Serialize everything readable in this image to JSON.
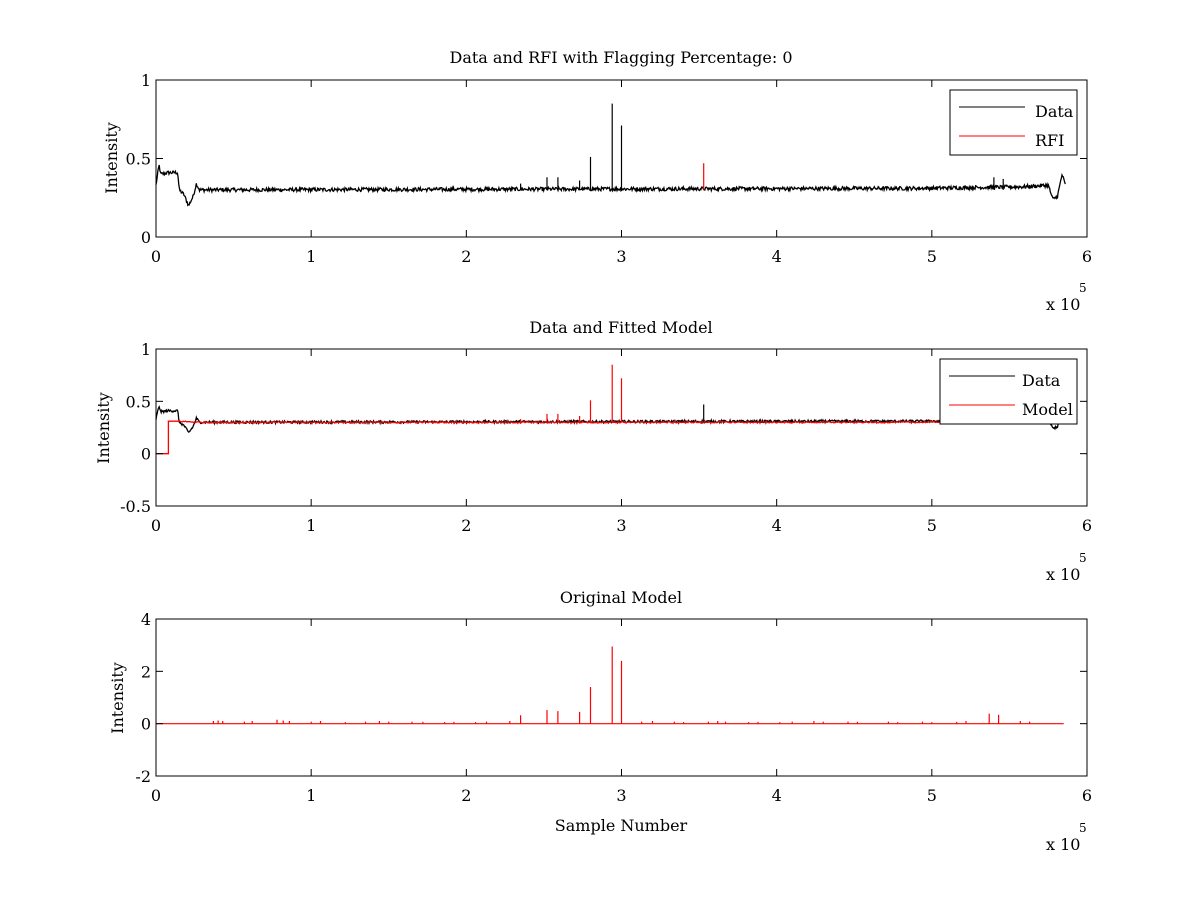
{
  "chart_data": [
    {
      "type": "line",
      "title": "Data and RFI with Flagging Percentage: 0",
      "ylabel": "Intensity",
      "xlabel": "",
      "xlim": [
        0,
        600000
      ],
      "ylim": [
        0,
        1
      ],
      "xticks": [
        "0",
        "1",
        "2",
        "3",
        "4",
        "5",
        "6"
      ],
      "yticks": [
        "0",
        "0.5",
        "1"
      ],
      "x_multiplier": "x 10",
      "x_exponent": "5",
      "legend_position": "top-right",
      "series": [
        {
          "name": "Data",
          "color": "#000000",
          "baseline": 0.3,
          "segments": [
            [
              0,
              0.33
            ],
            [
              2000,
              0.46
            ],
            [
              3000,
              0.4
            ],
            [
              8000,
              0.41
            ],
            [
              14000,
              0.41
            ],
            [
              15000,
              0.3
            ],
            [
              18000,
              0.27
            ],
            [
              21000,
              0.2
            ],
            [
              24000,
              0.26
            ],
            [
              26000,
              0.34
            ],
            [
              28000,
              0.3
            ],
            [
              490000,
              0.31
            ],
            [
              560000,
              0.32
            ],
            [
              575000,
              0.33
            ],
            [
              578000,
              0.24
            ],
            [
              581000,
              0.26
            ],
            [
              584000,
              0.4
            ],
            [
              586000,
              0.33
            ]
          ],
          "spikes": [
            [
              235000,
              0.34
            ],
            [
              252000,
              0.38
            ],
            [
              259000,
              0.38
            ],
            [
              273000,
              0.36
            ],
            [
              280000,
              0.51
            ],
            [
              294000,
              0.85
            ],
            [
              300000,
              0.71
            ],
            [
              385000,
              0.32
            ],
            [
              540000,
              0.38
            ],
            [
              546000,
              0.37
            ]
          ]
        },
        {
          "name": "RFI",
          "color": "#ff0000",
          "spikes": [
            [
              353000,
              0.47
            ]
          ]
        }
      ]
    },
    {
      "type": "line",
      "title": "Data and Fitted Model",
      "ylabel": "Intensity",
      "xlabel": "",
      "xlim": [
        0,
        600000
      ],
      "ylim": [
        -0.5,
        1
      ],
      "xticks": [
        "0",
        "1",
        "2",
        "3",
        "4",
        "5",
        "6"
      ],
      "yticks": [
        "-0.5",
        "0",
        "0.5",
        "1"
      ],
      "x_multiplier": "x 10",
      "x_exponent": "5",
      "legend_position": "top-right",
      "series": [
        {
          "name": "Data",
          "color": "#000000",
          "segments": [
            [
              0,
              0.33
            ],
            [
              2000,
              0.46
            ],
            [
              3000,
              0.4
            ],
            [
              8000,
              0.41
            ],
            [
              14000,
              0.41
            ],
            [
              15000,
              0.3
            ],
            [
              18000,
              0.27
            ],
            [
              21000,
              0.2
            ],
            [
              24000,
              0.26
            ],
            [
              26000,
              0.34
            ],
            [
              28000,
              0.3
            ],
            [
              490000,
              0.31
            ],
            [
              560000,
              0.32
            ],
            [
              575000,
              0.33
            ],
            [
              578000,
              0.24
            ],
            [
              581000,
              0.26
            ],
            [
              584000,
              0.4
            ],
            [
              586000,
              0.33
            ]
          ],
          "spikes": [
            [
              353000,
              0.47
            ]
          ]
        },
        {
          "name": "Model",
          "color": "#ff0000",
          "segments": [
            [
              0,
              0.0
            ],
            [
              8000,
              0.0
            ],
            [
              8000,
              0.31
            ],
            [
              14000,
              0.31
            ],
            [
              28000,
              0.3
            ],
            [
              490000,
              0.3
            ],
            [
              586000,
              0.32
            ]
          ],
          "spikes": [
            [
              252000,
              0.38
            ],
            [
              259000,
              0.38
            ],
            [
              273000,
              0.36
            ],
            [
              280000,
              0.51
            ],
            [
              294000,
              0.85
            ],
            [
              300000,
              0.72
            ],
            [
              235000,
              0.33
            ]
          ]
        }
      ]
    },
    {
      "type": "line",
      "title": "Original Model",
      "ylabel": "Intensity",
      "xlabel": "Sample Number",
      "xlim": [
        0,
        600000
      ],
      "ylim": [
        -2,
        4
      ],
      "xticks": [
        "0",
        "1",
        "2",
        "3",
        "4",
        "5",
        "6"
      ],
      "yticks": [
        "-2",
        "0",
        "2",
        "4"
      ],
      "x_multiplier": "x 10",
      "x_exponent": "5",
      "series": [
        {
          "color": "#ff0000",
          "baseline": 0,
          "segments": [
            [
              0,
              0
            ],
            [
              585000,
              0
            ]
          ],
          "spikes": [
            [
              37000,
              0.1
            ],
            [
              40000,
              0.12
            ],
            [
              43000,
              0.1
            ],
            [
              57000,
              0.08
            ],
            [
              62000,
              0.1
            ],
            [
              78000,
              0.15
            ],
            [
              82000,
              0.12
            ],
            [
              86000,
              0.1
            ],
            [
              100000,
              0.08
            ],
            [
              106000,
              0.1
            ],
            [
              122000,
              0.06
            ],
            [
              135000,
              0.08
            ],
            [
              144000,
              0.1
            ],
            [
              150000,
              0.08
            ],
            [
              165000,
              0.08
            ],
            [
              172000,
              0.07
            ],
            [
              186000,
              0.06
            ],
            [
              192000,
              0.07
            ],
            [
              206000,
              0.06
            ],
            [
              213000,
              0.08
            ],
            [
              228000,
              0.1
            ],
            [
              235000,
              0.32
            ],
            [
              252000,
              0.52
            ],
            [
              259000,
              0.48
            ],
            [
              273000,
              0.45
            ],
            [
              280000,
              1.4
            ],
            [
              294000,
              2.95
            ],
            [
              300000,
              2.4
            ],
            [
              313000,
              0.08
            ],
            [
              320000,
              0.1
            ],
            [
              334000,
              0.08
            ],
            [
              340000,
              0.06
            ],
            [
              356000,
              0.08
            ],
            [
              362000,
              0.1
            ],
            [
              367000,
              0.08
            ],
            [
              382000,
              0.06
            ],
            [
              388000,
              0.07
            ],
            [
              402000,
              0.06
            ],
            [
              410000,
              0.08
            ],
            [
              424000,
              0.1
            ],
            [
              430000,
              0.08
            ],
            [
              446000,
              0.08
            ],
            [
              452000,
              0.07
            ],
            [
              472000,
              0.08
            ],
            [
              478000,
              0.06
            ],
            [
              494000,
              0.08
            ],
            [
              500000,
              0.06
            ],
            [
              516000,
              0.07
            ],
            [
              522000,
              0.1
            ],
            [
              537000,
              0.38
            ],
            [
              543000,
              0.34
            ],
            [
              557000,
              0.1
            ],
            [
              563000,
              0.08
            ]
          ]
        }
      ]
    }
  ]
}
